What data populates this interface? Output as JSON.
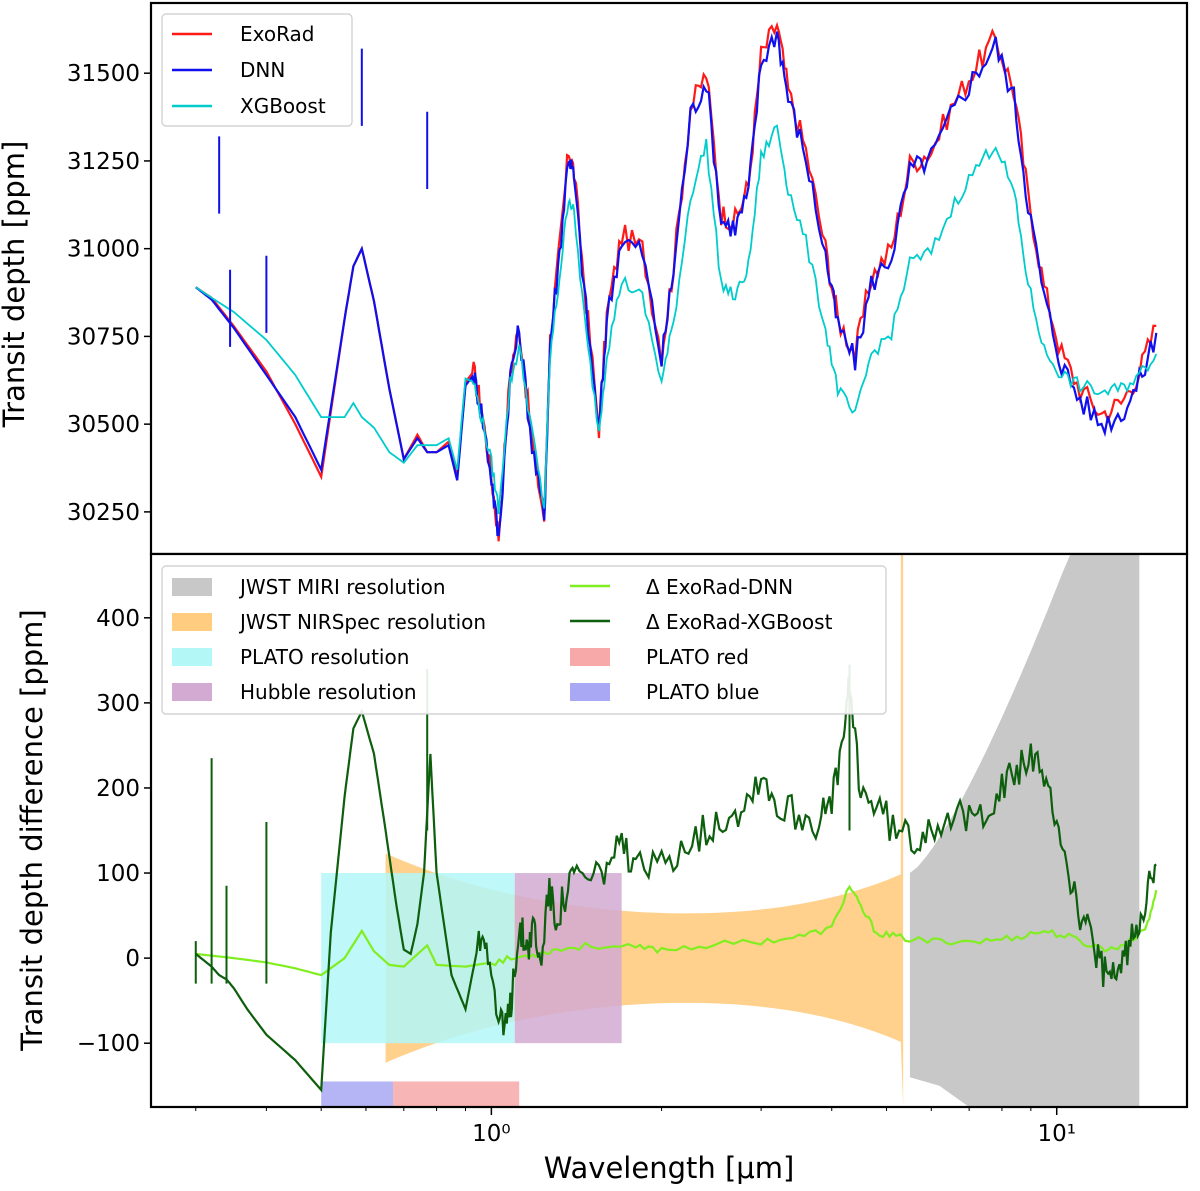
{
  "chart_data": [
    {
      "type": "line",
      "panel": "top",
      "ylabel": "Transit depth [ppm]",
      "xscale": "log",
      "xlim": [
        0.25,
        17
      ],
      "ylim": [
        30130,
        31700
      ],
      "yticks": [
        30250,
        30500,
        30750,
        31000,
        31250,
        31500
      ],
      "legend_loc": "top-left",
      "series": [
        {
          "name": "ExoRad",
          "color": "#ff1a1a",
          "x": [
            0.3,
            0.32,
            0.35,
            0.4,
            0.45,
            0.5,
            0.55,
            0.57,
            0.59,
            0.62,
            0.66,
            0.7,
            0.74,
            0.77,
            0.8,
            0.84,
            0.87,
            0.9,
            0.93,
            0.96,
            1.0,
            1.03,
            1.08,
            1.12,
            1.18,
            1.24,
            1.27,
            1.32,
            1.37,
            1.4,
            1.47,
            1.55,
            1.6,
            1.7,
            1.85,
            2.0,
            2.1,
            2.25,
            2.4,
            2.55,
            2.7,
            2.85,
            3.0,
            3.2,
            3.35,
            3.6,
            3.9,
            4.1,
            4.4,
            4.7,
            5.1,
            5.5,
            6.0,
            6.6,
            7.2,
            7.8,
            8.4,
            8.9,
            9.5,
            10.2,
            11.0,
            12.0,
            13.0,
            14.0,
            15.0
          ],
          "y": [
            30890,
            30860,
            30780,
            30650,
            30500,
            30350,
            30800,
            30950,
            31000,
            30850,
            30600,
            30400,
            30470,
            30420,
            30420,
            30450,
            30350,
            30620,
            30650,
            30550,
            30350,
            30180,
            30650,
            30780,
            30450,
            30230,
            30740,
            31000,
            31280,
            31220,
            30850,
            30490,
            30810,
            31040,
            31000,
            30700,
            30950,
            31400,
            31500,
            31100,
            31080,
            31180,
            31550,
            31640,
            31450,
            31280,
            31000,
            30800,
            30700,
            30920,
            31000,
            31240,
            31280,
            31420,
            31520,
            31600,
            31450,
            31150,
            30890,
            30700,
            30600,
            30530,
            30560,
            30650,
            30780
          ]
        },
        {
          "name": "DNN",
          "color": "#1010ee",
          "x": [
            0.3,
            0.32,
            0.35,
            0.4,
            0.45,
            0.5,
            0.55,
            0.57,
            0.59,
            0.62,
            0.66,
            0.7,
            0.74,
            0.77,
            0.8,
            0.84,
            0.87,
            0.9,
            0.93,
            0.96,
            1.0,
            1.03,
            1.08,
            1.12,
            1.18,
            1.24,
            1.27,
            1.32,
            1.37,
            1.4,
            1.47,
            1.55,
            1.6,
            1.7,
            1.85,
            2.0,
            2.1,
            2.25,
            2.4,
            2.55,
            2.7,
            2.85,
            3.0,
            3.2,
            3.35,
            3.6,
            3.9,
            4.1,
            4.4,
            4.7,
            5.1,
            5.5,
            6.0,
            6.6,
            7.2,
            7.8,
            8.4,
            8.9,
            9.5,
            10.2,
            11.0,
            12.0,
            13.0,
            14.0,
            15.0
          ],
          "y": [
            30890,
            30855,
            30775,
            30640,
            30520,
            30370,
            30800,
            30950,
            31000,
            30850,
            30600,
            30400,
            30460,
            30420,
            30420,
            30440,
            30340,
            30610,
            30640,
            30540,
            30350,
            30170,
            30640,
            30770,
            30440,
            30230,
            30730,
            30990,
            31270,
            31200,
            30830,
            30480,
            30800,
            31030,
            30990,
            30680,
            30940,
            31380,
            31480,
            31080,
            31060,
            31160,
            31530,
            31620,
            31430,
            31260,
            30980,
            30780,
            30680,
            30900,
            30980,
            31220,
            31260,
            31400,
            31500,
            31580,
            31430,
            31130,
            30860,
            30670,
            30570,
            30500,
            30530,
            30620,
            30760
          ]
        },
        {
          "name": "XGBoost",
          "color": "#00cccc",
          "x": [
            0.3,
            0.32,
            0.35,
            0.4,
            0.45,
            0.5,
            0.55,
            0.57,
            0.59,
            0.62,
            0.66,
            0.7,
            0.74,
            0.77,
            0.8,
            0.84,
            0.87,
            0.9,
            0.93,
            0.96,
            1.0,
            1.03,
            1.08,
            1.12,
            1.18,
            1.24,
            1.27,
            1.32,
            1.37,
            1.4,
            1.47,
            1.55,
            1.6,
            1.7,
            1.85,
            2.0,
            2.1,
            2.25,
            2.4,
            2.55,
            2.7,
            2.85,
            3.0,
            3.2,
            3.35,
            3.6,
            3.9,
            4.1,
            4.4,
            4.7,
            5.1,
            5.5,
            6.0,
            6.6,
            7.2,
            7.8,
            8.4,
            8.9,
            9.5,
            10.2,
            11.0,
            12.0,
            13.0,
            14.0,
            15.0
          ],
          "y": [
            30890,
            30860,
            30820,
            30740,
            30640,
            30520,
            30520,
            30560,
            30520,
            30490,
            30420,
            30390,
            30440,
            30440,
            30440,
            30460,
            30370,
            30630,
            30620,
            30520,
            30390,
            30260,
            30620,
            30720,
            30480,
            30260,
            30690,
            30920,
            31150,
            31100,
            30760,
            30480,
            30700,
            30910,
            30860,
            30620,
            30790,
            31150,
            31300,
            30900,
            30860,
            30950,
            31260,
            31350,
            31170,
            31020,
            30770,
            30600,
            30520,
            30700,
            30760,
            30960,
            30990,
            31130,
            31230,
            31300,
            31160,
            30900,
            30710,
            30640,
            30610,
            30590,
            30600,
            30640,
            30700
          ]
        }
      ],
      "spikes": [
        {
          "x": 0.33,
          "y": 31320
        },
        {
          "x": 0.345,
          "y": 30940
        },
        {
          "x": 0.4,
          "y": 30980
        },
        {
          "x": 0.59,
          "y": 31570
        },
        {
          "x": 0.77,
          "y": 31390
        }
      ]
    },
    {
      "type": "line",
      "panel": "bottom",
      "xlabel": "Wavelength [μm]",
      "ylabel": "Transit depth difference [ppm]",
      "xscale": "log",
      "xlim": [
        0.25,
        17
      ],
      "ylim": [
        -175,
        475
      ],
      "yticks": [
        -100,
        0,
        100,
        200,
        300,
        400
      ],
      "xticks": [
        {
          "value": 1,
          "label": "10⁰"
        },
        {
          "value": 10,
          "label": "10¹"
        }
      ],
      "legend_loc": "top",
      "bands": [
        {
          "name": "JWST MIRI resolution",
          "color": "#c8c8c8",
          "kind": "miri"
        },
        {
          "name": "JWST NIRSpec resolution",
          "color": "#ffcc80",
          "kind": "nirspec"
        },
        {
          "name": "PLATO resolution",
          "color": "#b3f7f7",
          "x": [
            0.5,
            1.1
          ],
          "y": [
            -100,
            100
          ]
        },
        {
          "name": "Hubble resolution",
          "color": "#d2aad2",
          "x": [
            1.1,
            1.7
          ],
          "y": [
            -100,
            100
          ]
        },
        {
          "name": "PLATO red",
          "color": "#f7a8a8",
          "x": [
            0.67,
            1.12
          ],
          "y": [
            -175,
            -145
          ]
        },
        {
          "name": "PLATO blue",
          "color": "#a8a8f5",
          "x": [
            0.5,
            0.67
          ],
          "y": [
            -175,
            -145
          ]
        }
      ],
      "series": [
        {
          "name": "Δ ExoRad-DNN",
          "color": "#80ee20",
          "x": [
            0.3,
            0.35,
            0.4,
            0.45,
            0.5,
            0.55,
            0.59,
            0.62,
            0.66,
            0.7,
            0.77,
            0.8,
            0.9,
            1.0,
            1.1,
            1.2,
            1.3,
            1.5,
            1.8,
            2.0,
            2.4,
            3.0,
            3.5,
            4.0,
            4.3,
            4.5,
            4.8,
            5.2,
            5.8,
            6.5,
            7.5,
            8.5,
            9.5,
            10.5,
            11.5,
            12.5,
            13.5,
            14.5,
            15.0
          ],
          "y": [
            5,
            0,
            -5,
            -12,
            -20,
            0,
            32,
            8,
            -8,
            -10,
            15,
            -8,
            -10,
            -5,
            0,
            5,
            10,
            15,
            12,
            10,
            15,
            20,
            25,
            35,
            85,
            60,
            30,
            25,
            20,
            20,
            20,
            25,
            32,
            25,
            15,
            10,
            20,
            40,
            80
          ]
        },
        {
          "name": "Δ ExoRad-XGBoost",
          "color": "#0d5e0d",
          "x": [
            0.3,
            0.32,
            0.33,
            0.34,
            0.35,
            0.37,
            0.4,
            0.45,
            0.5,
            0.52,
            0.55,
            0.57,
            0.59,
            0.62,
            0.65,
            0.68,
            0.7,
            0.72,
            0.74,
            0.76,
            0.78,
            0.8,
            0.85,
            0.9,
            0.95,
            0.98,
            1.02,
            1.05,
            1.08,
            1.1,
            1.13,
            1.16,
            1.19,
            1.22,
            1.26,
            1.3,
            1.35,
            1.4,
            1.5,
            1.6,
            1.7,
            1.8,
            2.0,
            2.2,
            2.4,
            2.6,
            2.8,
            3.0,
            3.2,
            3.5,
            3.8,
            4.0,
            4.2,
            4.3,
            4.5,
            4.8,
            5.2,
            5.6,
            6.0,
            6.5,
            7.0,
            7.5,
            8.0,
            8.5,
            9.0,
            9.5,
            10.0,
            10.5,
            11.0,
            11.5,
            12.0,
            12.5,
            13.0,
            13.5,
            14.0,
            14.5,
            15.0
          ],
          "y": [
            5,
            -10,
            -20,
            -25,
            -35,
            -60,
            -90,
            -120,
            -155,
            30,
            190,
            270,
            290,
            240,
            150,
            60,
            10,
            5,
            40,
            100,
            240,
            100,
            -20,
            -60,
            20,
            30,
            -60,
            -90,
            -60,
            0,
            30,
            15,
            40,
            -10,
            80,
            50,
            70,
            100,
            90,
            110,
            130,
            100,
            110,
            140,
            150,
            170,
            180,
            220,
            180,
            170,
            160,
            180,
            260,
            320,
            200,
            180,
            150,
            140,
            160,
            170,
            160,
            180,
            200,
            220,
            240,
            200,
            170,
            100,
            50,
            20,
            -10,
            -30,
            -10,
            20,
            50,
            80,
            110
          ]
        }
      ],
      "spikes": [
        {
          "x": 0.3,
          "y": 20
        },
        {
          "x": 0.32,
          "y": 235
        },
        {
          "x": 0.34,
          "y": 85
        },
        {
          "x": 0.4,
          "y": 160
        },
        {
          "x": 0.77,
          "y": 340
        },
        {
          "x": 4.3,
          "y": 345
        }
      ]
    }
  ]
}
